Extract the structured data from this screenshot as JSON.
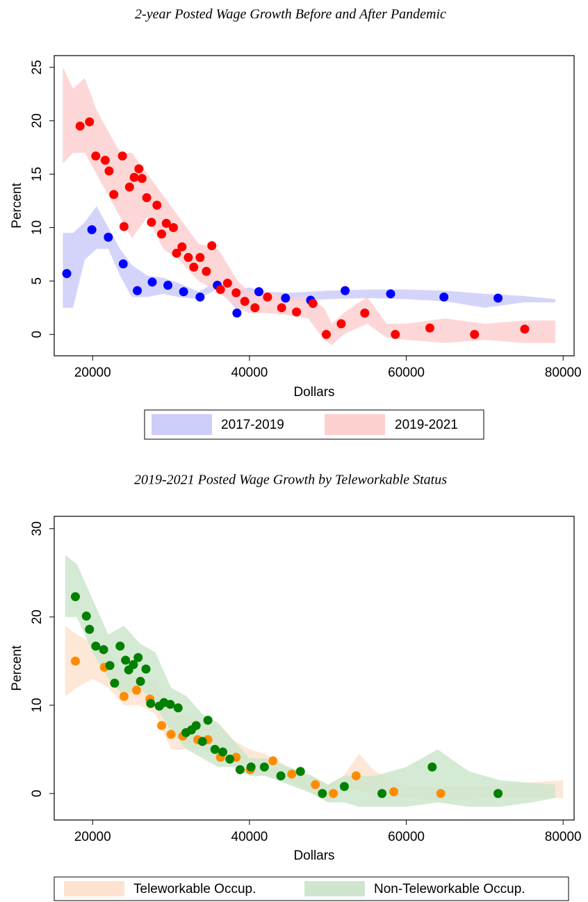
{
  "chart_data": [
    {
      "type": "scatter",
      "title": "2-year Posted Wage Growth Before and After Pandemic",
      "xlabel": "Dollars",
      "ylabel": "Percent",
      "xlim": [
        15100,
        81400
      ],
      "ylim": [
        -2,
        26.1
      ],
      "xticks": [
        20000,
        40000,
        60000,
        80000
      ],
      "yticks": [
        0,
        5,
        10,
        15,
        20,
        25
      ],
      "series": [
        {
          "name": "2017-2019",
          "color": "#0000ff",
          "band_color": "#cdcdfa",
          "x": [
            16700,
            19900,
            22000,
            23900,
            25700,
            27600,
            29600,
            31600,
            33700,
            35900,
            38400,
            41200,
            44600,
            47800,
            52200,
            58000,
            64800,
            71700
          ],
          "values": [
            5.7,
            9.8,
            9.1,
            6.6,
            4.1,
            4.9,
            4.6,
            4.0,
            3.5,
            4.6,
            2.0,
            4.0,
            3.4,
            3.2,
            4.1,
            3.8,
            3.5,
            3.4
          ],
          "band": {
            "x": [
              16200,
              17500,
              19000,
              20500,
              22000,
              23500,
              25000,
              27000,
              29000,
              31000,
              33500,
              36000,
              38500,
              40000,
              42000,
              45000,
              50000,
              55000,
              60000,
              65000,
              70000,
              75000,
              79000
            ],
            "lower": [
              2.5,
              2.5,
              7,
              8,
              8,
              5.5,
              3.5,
              3.5,
              3.8,
              3.5,
              3.3,
              4.3,
              2.2,
              2.8,
              3.2,
              3.1,
              3.3,
              3.4,
              3.3,
              3.1,
              2.5,
              3,
              3
            ],
            "upper": [
              9.5,
              9.5,
              10.5,
              12,
              10,
              8,
              6.5,
              5.5,
              5.3,
              4.8,
              4,
              5,
              4.2,
              4.4,
              4,
              3.9,
              4.1,
              4.2,
              4.2,
              4.1,
              3.8,
              3.6,
              3.3
            ]
          }
        },
        {
          "name": "2019-2021",
          "color": "#ff0000",
          "band_color": "#fdd0d0",
          "x": [
            18400,
            19600,
            20400,
            21600,
            22100,
            22700,
            23800,
            24000,
            24700,
            25300,
            25900,
            26300,
            26900,
            27500,
            28200,
            28800,
            29400,
            30300,
            30700,
            31400,
            32200,
            32900,
            33700,
            34500,
            35200,
            36300,
            37200,
            38300,
            39400,
            40700,
            42300,
            44100,
            46000,
            48100,
            49800,
            51700,
            54700,
            58600,
            63000,
            68700,
            75100
          ],
          "values": [
            19.5,
            19.9,
            16.7,
            16.3,
            15.3,
            13.1,
            16.7,
            10.1,
            13.8,
            14.7,
            15.5,
            14.6,
            12.8,
            10.5,
            12.1,
            9.4,
            10.4,
            10.0,
            7.6,
            8.2,
            7.2,
            6.3,
            7.2,
            5.9,
            8.3,
            4.2,
            4.8,
            3.9,
            3.1,
            2.5,
            3.5,
            2.5,
            2.1,
            2.9,
            0,
            1.0,
            2.0,
            0,
            0.6,
            0,
            0.5
          ],
          "band": {
            "x": [
              16200,
              17500,
              19000,
              20500,
              22000,
              23500,
              25000,
              27000,
              29000,
              31000,
              33500,
              36000,
              38500,
              40000,
              42000,
              45000,
              47500,
              49500,
              50500,
              52000,
              55000,
              57500,
              60000,
              65000,
              70000,
              75000,
              79000
            ],
            "lower": [
              16,
              17,
              17,
              15,
              13,
              11,
              9,
              11,
              8,
              7,
              5,
              4,
              2.5,
              2,
              2,
              1.8,
              1.5,
              -0.5,
              -1,
              0,
              1,
              -0.3,
              -0.5,
              -0.8,
              -0.5,
              -0.8,
              -0.8
            ],
            "upper": [
              25,
              23,
              24,
              21,
              19,
              17,
              17,
              15,
              13,
              11,
              8.5,
              8,
              5,
              4,
              4,
              3.5,
              3.5,
              2.5,
              1,
              2,
              3.5,
              1,
              1,
              1.5,
              1,
              1.3,
              1.3
            ]
          }
        }
      ]
    },
    {
      "type": "scatter",
      "title": "2019-2021 Posted Wage Growth by Teleworkable Status",
      "xlabel": "Dollars",
      "ylabel": "Percent",
      "xlim": [
        15100,
        81400
      ],
      "ylim": [
        -3,
        31.4
      ],
      "xticks": [
        20000,
        40000,
        60000,
        80000
      ],
      "yticks": [
        0,
        10,
        20,
        30
      ],
      "series": [
        {
          "name": "Teleworkable Occup.",
          "color": "#ff8c00",
          "band_color": "#fde3cf",
          "x": [
            17800,
            21500,
            24000,
            25600,
            27300,
            28800,
            30000,
            31500,
            33400,
            34700,
            36300,
            38300,
            40100,
            43000,
            45400,
            48400,
            50700,
            53600,
            58400,
            64400
          ],
          "values": [
            15.0,
            14.3,
            11.0,
            11.7,
            10.7,
            7.7,
            6.7,
            6.5,
            6.1,
            6.1,
            4.1,
            4.1,
            2.7,
            3.7,
            2.2,
            1.0,
            0,
            2.0,
            0.2,
            0
          ],
          "band": {
            "x": [
              16500,
              18000,
              20000,
              22000,
              24000,
              26000,
              28000,
              30000,
              32000,
              34000,
              36000,
              38000,
              40000,
              42000,
              45000,
              48000,
              50000,
              52000,
              54000,
              56000,
              60000,
              65000,
              70000,
              75000,
              80000
            ],
            "lower": [
              11,
              12,
              13,
              12,
              10,
              10,
              9,
              5,
              5,
              5,
              4,
              3,
              2,
              2,
              1.5,
              0,
              -1,
              0,
              0.5,
              -0.5,
              -0.5,
              -0.8,
              -0.6,
              -0.5,
              -0.5
            ],
            "upper": [
              19,
              18,
              17,
              16,
              14,
              13,
              13,
              9,
              9,
              8,
              8,
              6,
              5,
              4.5,
              3,
              2,
              1,
              2,
              4.5,
              2.5,
              0.8,
              0.8,
              0.8,
              1.2,
              1.5
            ]
          }
        },
        {
          "name": "Non-Teleworkable Occup.",
          "color": "#008000",
          "band_color": "#cde6cd",
          "x": [
            17800,
            19200,
            19600,
            20400,
            21400,
            22200,
            22800,
            23500,
            24200,
            24600,
            25200,
            25800,
            26100,
            26800,
            27400,
            28500,
            29100,
            29900,
            30900,
            31900,
            32600,
            33200,
            34000,
            34700,
            35600,
            36600,
            37500,
            38800,
            40200,
            41900,
            44000,
            46500,
            49300,
            52100,
            56900,
            63300,
            71700
          ],
          "values": [
            22.3,
            20.1,
            18.6,
            16.7,
            16.3,
            14.5,
            12.5,
            16.7,
            15.1,
            14.0,
            14.6,
            15.4,
            12.7,
            14.1,
            10.2,
            9.9,
            10.3,
            10.1,
            9.7,
            6.9,
            7.2,
            7.7,
            5.9,
            8.3,
            5.0,
            4.7,
            3.9,
            2.7,
            3.0,
            3.0,
            2.0,
            2.5,
            0,
            0.8,
            0,
            3.0,
            0
          ],
          "band": {
            "x": [
              16500,
              18000,
              20000,
              22000,
              24000,
              26000,
              28000,
              30000,
              32000,
              34000,
              36000,
              38000,
              40000,
              42000,
              45000,
              48000,
              50000,
              52000,
              54000,
              56000,
              60000,
              64000,
              68000,
              72000,
              76000,
              79000
            ],
            "lower": [
              20,
              20,
              16,
              13,
              11,
              12,
              10,
              7,
              5,
              4,
              3,
              3,
              2,
              2,
              1,
              0,
              -1,
              -1,
              -1.5,
              -1.5,
              -1.5,
              -1,
              -1.5,
              -1.5,
              -1,
              -0.5
            ],
            "upper": [
              27,
              26,
              22,
              18,
              19,
              17,
              16,
              12,
              11,
              9,
              8,
              6,
              4,
              4,
              3,
              2,
              1,
              2,
              2,
              2,
              3,
              5,
              2.5,
              1.5,
              1.2,
              1
            ]
          }
        }
      ]
    }
  ]
}
